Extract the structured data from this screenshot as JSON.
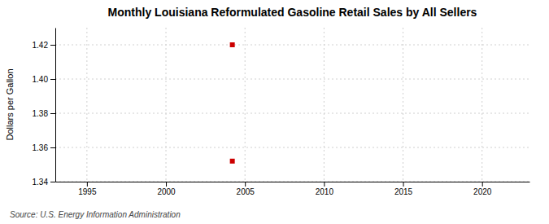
{
  "chart_data": {
    "type": "scatter",
    "title": "Monthly Louisiana Reformulated Gasoline Retail Sales by All Sellers",
    "ylabel": "Dollars per Gallon",
    "source": "Source: U.S. Energy Information Administration",
    "x": [
      2004.2,
      2004.2
    ],
    "values": [
      1.42,
      1.352
    ],
    "colors": [
      "#cc0000",
      "#cc0000"
    ],
    "marker": "square",
    "xlim": [
      1993,
      2023
    ],
    "ylim": [
      1.34,
      1.43
    ],
    "xticks": [
      1995,
      2000,
      2005,
      2010,
      2015,
      2020
    ],
    "yticks": [
      1.34,
      1.36,
      1.38,
      {
        "value": 1.4,
        "label": "1.40"
      },
      1.42
    ],
    "grid": true
  }
}
